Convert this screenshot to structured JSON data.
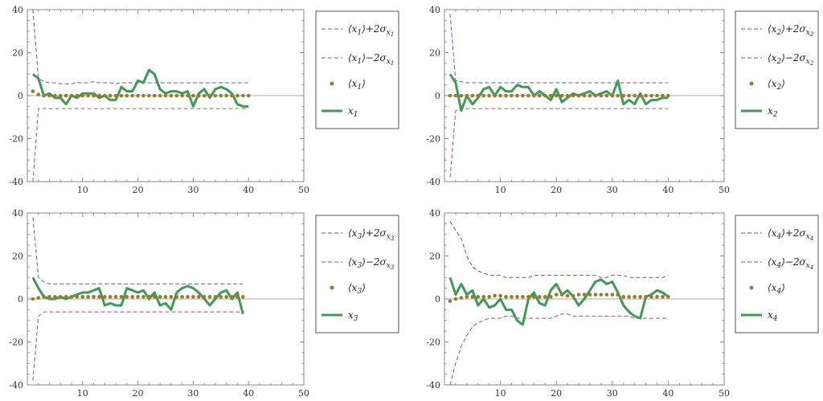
{
  "chart_data": [
    {
      "type": "line",
      "xlim": [
        0,
        50
      ],
      "ylim": [
        -40,
        40
      ],
      "xticks": [
        10,
        20,
        30,
        40,
        50
      ],
      "yticks": [
        -40,
        -20,
        0,
        20,
        40
      ],
      "legend": {
        "plus": {
          "base": "⟨x",
          "sub": "1",
          "op": "⟩+2σ",
          "ssub": "x",
          "ssub2": "1"
        },
        "minus": {
          "base": "⟨x",
          "sub": "1",
          "op": "⟩−2σ",
          "ssub": "x",
          "ssub2": "1"
        },
        "mean": {
          "base": "⟨x",
          "sub": "1",
          "op": "⟩"
        },
        "actual": {
          "base": "x",
          "sub": "1"
        }
      },
      "x": [
        1,
        2,
        3,
        4,
        5,
        6,
        7,
        8,
        9,
        10,
        11,
        12,
        13,
        14,
        15,
        16,
        17,
        18,
        19,
        20,
        21,
        22,
        23,
        24,
        25,
        26,
        27,
        28,
        29,
        30,
        31,
        32,
        33,
        34,
        35,
        36,
        37,
        38,
        39,
        40
      ],
      "upper": [
        40,
        8,
        6.5,
        6,
        6,
        5.5,
        5.5,
        5.5,
        6,
        6,
        6,
        6.5,
        6,
        6,
        6,
        5.5,
        6,
        6,
        6,
        6,
        6,
        6,
        6,
        6,
        6,
        6,
        6,
        6,
        6,
        6,
        6,
        6,
        6,
        6,
        6,
        6,
        6,
        6,
        6,
        6
      ],
      "lower": [
        -40,
        -6,
        -6,
        -6,
        -6,
        -6,
        -6,
        -6,
        -6,
        -6,
        -6,
        -6,
        -6,
        -6,
        -6,
        -6,
        -6,
        -6,
        -6,
        -6,
        -6,
        -6,
        -6,
        -6,
        -6,
        -6,
        -6,
        -6,
        -6,
        -6,
        -6,
        -6,
        -6,
        -6,
        -6,
        -6,
        -6,
        -6,
        -6,
        -6
      ],
      "mean": [
        2,
        0.5,
        0,
        0,
        0,
        0,
        0,
        0,
        0,
        0,
        0,
        0,
        0,
        0,
        0,
        0,
        0,
        0,
        0,
        0,
        0,
        0,
        0,
        0,
        0,
        0,
        0,
        0,
        0,
        0,
        0,
        0,
        0,
        0,
        0,
        0,
        0,
        0,
        0,
        0
      ],
      "actual": [
        10,
        8,
        0,
        1,
        -1,
        -1,
        -4,
        0,
        -1,
        1,
        1,
        1,
        -1,
        0,
        -2,
        -2,
        4,
        2,
        2,
        7,
        6,
        12,
        10,
        3,
        1,
        2,
        2,
        1,
        2,
        -5,
        1,
        3,
        -1,
        3,
        4,
        3,
        1,
        -4,
        -5,
        -5
      ]
    },
    {
      "type": "line",
      "xlim": [
        0,
        50
      ],
      "ylim": [
        -40,
        40
      ],
      "xticks": [
        10,
        20,
        30,
        40,
        50
      ],
      "yticks": [
        -40,
        -20,
        0,
        20,
        40
      ],
      "legend": {
        "plus": {
          "base": "⟨x",
          "sub": "2",
          "op": "⟩+2σ",
          "ssub": "x",
          "ssub2": "2"
        },
        "minus": {
          "base": "⟨x",
          "sub": "2",
          "op": "⟩−2σ",
          "ssub": "x",
          "ssub2": "2"
        },
        "mean": {
          "base": "⟨x",
          "sub": "2",
          "op": "⟩"
        },
        "actual": {
          "base": "x",
          "sub": "2"
        }
      },
      "x": [
        1,
        2,
        3,
        4,
        5,
        6,
        7,
        8,
        9,
        10,
        11,
        12,
        13,
        14,
        15,
        16,
        17,
        18,
        19,
        20,
        21,
        22,
        23,
        24,
        25,
        26,
        27,
        28,
        29,
        30,
        31,
        32,
        33,
        34,
        35,
        36,
        37,
        38,
        39,
        40
      ],
      "upper": [
        38,
        7,
        6.5,
        6,
        6,
        6,
        6,
        6,
        6,
        6,
        6,
        6,
        6,
        6,
        6,
        6,
        6,
        6,
        6,
        6,
        6,
        6,
        6,
        6,
        6,
        6,
        6,
        6,
        6,
        6,
        6,
        6,
        6,
        6,
        6,
        6,
        6,
        6,
        6,
        6
      ],
      "lower": [
        -38,
        -7,
        -6.5,
        -6,
        -6,
        -6,
        -6,
        -6,
        -6,
        -6,
        -6,
        -6,
        -6,
        -6,
        -6,
        -6,
        -6,
        -6,
        -6,
        -6,
        -6,
        -6,
        -6,
        -6,
        -6,
        -6,
        -6,
        -6,
        -6,
        -6,
        -6,
        -6,
        -6,
        -6,
        -6,
        -6,
        -6,
        -6,
        -6,
        -6
      ],
      "mean": [
        0,
        0,
        0,
        0,
        0,
        0,
        0,
        0,
        0,
        0,
        0,
        0,
        0,
        0,
        0,
        0,
        0,
        0,
        0,
        0,
        0,
        0,
        0,
        0,
        0,
        0,
        0,
        0,
        0,
        0,
        0,
        0,
        0,
        0,
        0,
        0,
        0,
        0,
        0,
        0
      ],
      "actual": [
        10,
        6,
        -7,
        0,
        -4,
        -1,
        3,
        4,
        0,
        4,
        2,
        2,
        5,
        4,
        4,
        0,
        2,
        0,
        -2,
        3,
        -3,
        -1,
        1,
        0,
        1,
        2,
        0,
        1,
        2,
        0,
        7,
        -4,
        -2,
        -4,
        1,
        -4,
        -2,
        -2,
        -1,
        -1
      ]
    },
    {
      "type": "line",
      "xlim": [
        0,
        50
      ],
      "ylim": [
        -40,
        40
      ],
      "xticks": [
        10,
        20,
        30,
        40,
        50
      ],
      "yticks": [
        -40,
        -20,
        0,
        20,
        40
      ],
      "legend": {
        "plus": {
          "base": "⟨x",
          "sub": "3",
          "op": "⟩+2σ",
          "ssub": "x",
          "ssub2": "3"
        },
        "minus": {
          "base": "⟨x",
          "sub": "3",
          "op": "⟩−2σ",
          "ssub": "x",
          "ssub2": "3"
        },
        "mean": {
          "base": "⟨x",
          "sub": "3",
          "op": "⟩"
        },
        "actual": {
          "base": "x",
          "sub": "3"
        }
      },
      "x": [
        1,
        2,
        3,
        4,
        5,
        6,
        7,
        8,
        9,
        10,
        11,
        12,
        13,
        14,
        15,
        16,
        17,
        18,
        19,
        20,
        21,
        22,
        23,
        24,
        25,
        26,
        27,
        28,
        29,
        30,
        31,
        32,
        33,
        34,
        35,
        36,
        37,
        38,
        39
      ],
      "upper": [
        38,
        10,
        8,
        7,
        7,
        7,
        7,
        7,
        7,
        7,
        7,
        7,
        7,
        7,
        7,
        7,
        7,
        7,
        7,
        7,
        7,
        7,
        7,
        7,
        7,
        7,
        7,
        7,
        7,
        7,
        7,
        7,
        7,
        7,
        7,
        7,
        7,
        7,
        7
      ],
      "lower": [
        -38,
        -8,
        -6,
        -6,
        -6,
        -6,
        -6,
        -6,
        -6,
        -6,
        -6,
        -6,
        -6,
        -6,
        -6,
        -6,
        -6,
        -6,
        -6,
        -6,
        -6,
        -6,
        -6,
        -6,
        -6,
        -6,
        -6,
        -6,
        -6,
        -6,
        -6,
        -6,
        -6,
        -6,
        -6,
        -6,
        -6,
        -6,
        -6
      ],
      "mean": [
        0,
        0.5,
        1,
        1,
        1,
        1,
        1,
        1,
        1,
        1,
        1,
        1,
        1,
        1,
        1,
        1,
        1,
        1,
        1,
        1,
        1,
        1,
        1,
        1,
        1,
        1,
        1,
        1,
        1,
        1,
        1,
        1,
        1,
        1,
        1,
        1,
        1,
        1,
        1
      ],
      "actual": [
        10,
        5,
        1,
        0,
        0,
        1,
        0,
        1,
        2,
        3,
        3,
        4,
        5,
        -3,
        -2,
        -3,
        -3,
        5,
        4,
        3,
        4,
        0,
        3,
        -3,
        -2,
        -5,
        3,
        5,
        6,
        5,
        3,
        0,
        -3,
        0,
        3,
        4,
        0,
        3,
        -7
      ]
    },
    {
      "type": "line",
      "xlim": [
        0,
        50
      ],
      "ylim": [
        -40,
        40
      ],
      "xticks": [
        10,
        20,
        30,
        40,
        50
      ],
      "yticks": [
        -40,
        -20,
        0,
        20,
        40
      ],
      "legend": {
        "plus": {
          "base": "⟨x",
          "sub": "4",
          "op": "⟩+2σ",
          "ssub": "x",
          "ssub2": "4"
        },
        "minus": {
          "base": "⟨x",
          "sub": "4",
          "op": "⟩−2σ",
          "ssub": "x",
          "ssub2": "4"
        },
        "mean": {
          "base": "⟨x",
          "sub": "4",
          "op": "⟩"
        },
        "actual": {
          "base": "x",
          "sub": "4"
        }
      },
      "x": [
        1,
        2,
        3,
        4,
        5,
        6,
        7,
        8,
        9,
        10,
        11,
        12,
        13,
        14,
        15,
        16,
        17,
        18,
        19,
        20,
        21,
        22,
        23,
        24,
        25,
        26,
        27,
        28,
        29,
        30,
        31,
        32,
        33,
        34,
        35,
        36,
        37,
        38,
        39,
        40
      ],
      "upper": [
        36,
        32,
        28,
        20,
        15,
        13,
        12,
        11,
        11,
        11,
        10,
        10,
        10,
        10,
        10,
        11,
        11,
        11,
        11,
        11,
        11,
        11,
        11,
        11,
        11,
        11,
        11,
        10,
        10,
        11,
        11,
        11,
        10,
        10,
        10,
        10,
        10,
        10,
        10,
        11
      ],
      "lower": [
        -40,
        -30,
        -22,
        -17,
        -13,
        -11,
        -10,
        -9,
        -9,
        -9,
        -8,
        -8,
        -9,
        -9,
        -9,
        -9,
        -9,
        -9,
        -9,
        -8,
        -7,
        -7,
        -8,
        -8,
        -8,
        -8,
        -8,
        -8,
        -8,
        -8,
        -8,
        -8,
        -8,
        -9,
        -9,
        -9,
        -9,
        -9,
        -9,
        -9
      ],
      "mean": [
        -1,
        0,
        0.5,
        1,
        1,
        1,
        1,
        1,
        1.5,
        1.5,
        1,
        1,
        1,
        1,
        1,
        1,
        1,
        1,
        1,
        2,
        2,
        1.5,
        1.5,
        2,
        2,
        2,
        2,
        2,
        2,
        2,
        2,
        1,
        1,
        1,
        1,
        1,
        1,
        1,
        1,
        1
      ],
      "actual": [
        10,
        2,
        7,
        2,
        4,
        -3,
        0,
        -4,
        -3,
        0,
        -5,
        -5,
        -10,
        -12,
        0,
        3,
        -2,
        -3,
        4,
        7,
        2,
        4,
        1,
        -3,
        0,
        4,
        8,
        9,
        7,
        8,
        3,
        -3,
        -6,
        -8,
        -9,
        1,
        2,
        4,
        3,
        1
      ]
    }
  ]
}
